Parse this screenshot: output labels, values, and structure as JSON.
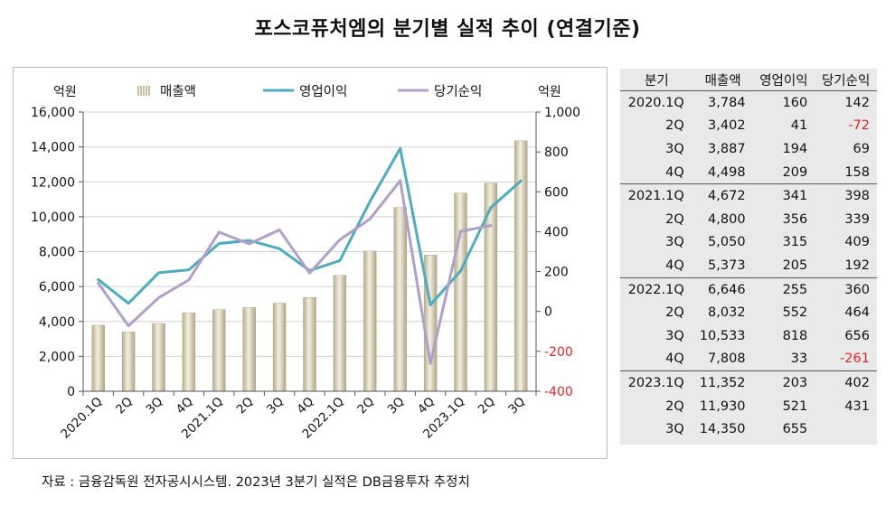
{
  "title": "포스코퓨처엠의 분기별 실적 추이 (연결기준)",
  "source": "자료 : 금융감독원 전자공시시스템. 2023년 3분기 실적은 DB금융투자 추정치",
  "table": {
    "headers": [
      "분기",
      "매출액",
      "영업이익",
      "당기순익"
    ],
    "rows": [
      {
        "q": "2020.1Q",
        "rev": "3,784",
        "op": "160",
        "net": "142"
      },
      {
        "q": "2Q",
        "rev": "3,402",
        "op": "41",
        "net": "-72"
      },
      {
        "q": "3Q",
        "rev": "3,887",
        "op": "194",
        "net": "69"
      },
      {
        "q": "4Q",
        "rev": "4,498",
        "op": "209",
        "net": "158"
      },
      {
        "q": "2021.1Q",
        "rev": "4,672",
        "op": "341",
        "net": "398"
      },
      {
        "q": "2Q",
        "rev": "4,800",
        "op": "356",
        "net": "339"
      },
      {
        "q": "3Q",
        "rev": "5,050",
        "op": "315",
        "net": "409"
      },
      {
        "q": "4Q",
        "rev": "5,373",
        "op": "205",
        "net": "192"
      },
      {
        "q": "2022.1Q",
        "rev": "6,646",
        "op": "255",
        "net": "360"
      },
      {
        "q": "2Q",
        "rev": "8,032",
        "op": "552",
        "net": "464"
      },
      {
        "q": "3Q",
        "rev": "10,533",
        "op": "818",
        "net": "656"
      },
      {
        "q": "4Q",
        "rev": "7,808",
        "op": "33",
        "net": "-261"
      },
      {
        "q": "2023.1Q",
        "rev": "11,352",
        "op": "203",
        "net": "402"
      },
      {
        "q": "2Q",
        "rev": "11,930",
        "op": "521",
        "net": "431"
      },
      {
        "q": "3Q",
        "rev": "14,350",
        "op": "655",
        "net": ""
      }
    ]
  },
  "colors": {
    "bar": "#d8d0b4",
    "op_line": "#4badbd",
    "net_line": "#b0a0c8",
    "negative": "#e0242a"
  },
  "chart_data": {
    "type": "bar",
    "categories": [
      "2020.1Q",
      "2Q",
      "3Q",
      "4Q",
      "2021.1Q",
      "2Q",
      "3Q",
      "4Q",
      "2022.1Q",
      "2Q",
      "3Q",
      "4Q",
      "2023.1Q",
      "2Q",
      "3Q"
    ],
    "ylabel_left": "억원",
    "ylabel_right": "억원",
    "ylim_left": [
      0,
      16000
    ],
    "ylim_right": [
      -400,
      1000
    ],
    "yticks_left": [
      "0",
      "2,000",
      "4,000",
      "6,000",
      "8,000",
      "10,000",
      "12,000",
      "14,000",
      "16,000"
    ],
    "yticks_right": [
      "-400",
      "-200",
      "0",
      "200",
      "400",
      "600",
      "800",
      "1,000"
    ],
    "legend_position": "top",
    "grid": true,
    "series": [
      {
        "name": "매출액",
        "type": "bar",
        "axis": "left",
        "values": [
          3784,
          3402,
          3887,
          4498,
          4672,
          4800,
          5050,
          5373,
          6646,
          8032,
          10533,
          7808,
          11352,
          11930,
          14350
        ]
      },
      {
        "name": "영업이익",
        "type": "line",
        "axis": "right",
        "values": [
          160,
          41,
          194,
          209,
          341,
          356,
          315,
          205,
          255,
          552,
          818,
          33,
          203,
          521,
          655
        ]
      },
      {
        "name": "당기순익",
        "type": "line",
        "axis": "right",
        "values": [
          142,
          -72,
          69,
          158,
          398,
          339,
          409,
          192,
          360,
          464,
          656,
          -261,
          402,
          431,
          null
        ]
      }
    ]
  }
}
